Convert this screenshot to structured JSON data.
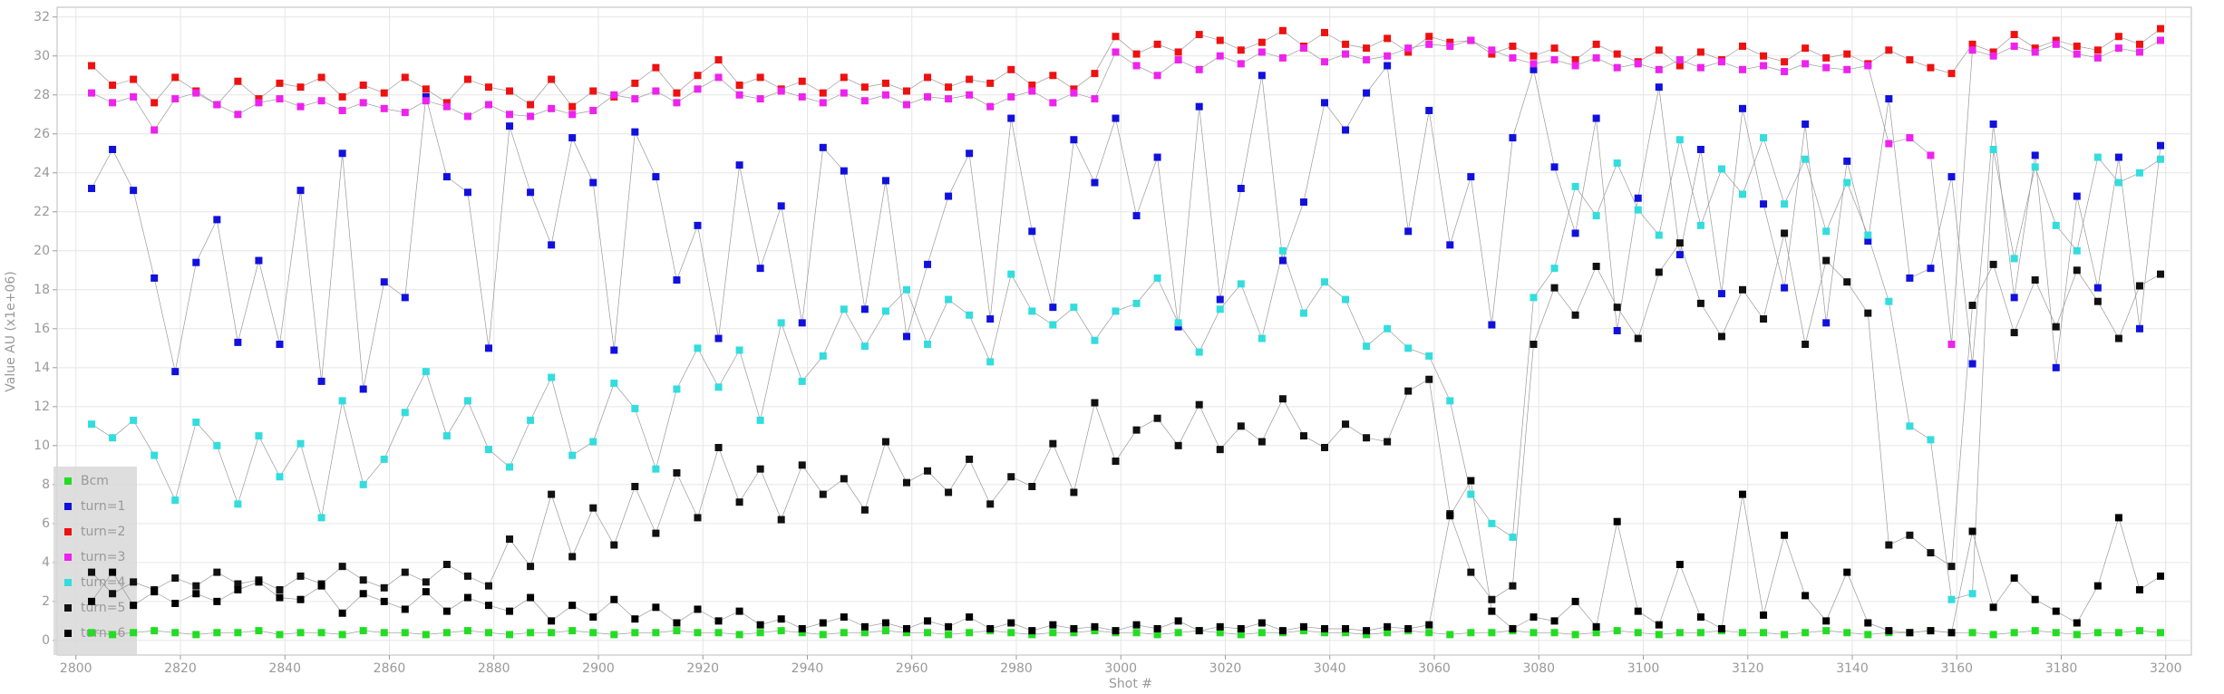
{
  "chart_data": {
    "type": "scatter",
    "xlabel": "Shot #",
    "ylabel": "Value AU (x1e+06)",
    "xlim": [
      2796.4,
      3204.9
    ],
    "ylim": [
      -0.75,
      32.5
    ],
    "xticks": [
      2800,
      2820,
      2840,
      2860,
      2880,
      2900,
      2920,
      2940,
      2960,
      2980,
      3000,
      3020,
      3040,
      3060,
      3080,
      3100,
      3120,
      3140,
      3160,
      3180,
      3200
    ],
    "yticks": [
      0,
      2,
      4,
      6,
      8,
      10,
      12,
      14,
      16,
      18,
      20,
      22,
      24,
      26,
      28,
      30,
      32
    ],
    "grid": true,
    "legend": "lower left",
    "line_color": "#999999",
    "x": [
      2803,
      2807,
      2811,
      2815,
      2819,
      2823,
      2827,
      2831,
      2835,
      2839,
      2843,
      2847,
      2851,
      2855,
      2859,
      2863,
      2867,
      2871,
      2875,
      2879,
      2883,
      2887,
      2891,
      2895,
      2899,
      2903,
      2907,
      2911,
      2915,
      2919,
      2923,
      2927,
      2931,
      2935,
      2939,
      2943,
      2947,
      2951,
      2955,
      2959,
      2963,
      2967,
      2971,
      2975,
      2979,
      2983,
      2987,
      2991,
      2995,
      2999,
      3003,
      3007,
      3011,
      3015,
      3019,
      3023,
      3027,
      3031,
      3035,
      3039,
      3043,
      3047,
      3051,
      3055,
      3059,
      3063,
      3067,
      3071,
      3075,
      3079,
      3083,
      3087,
      3091,
      3095,
      3099,
      3103,
      3107,
      3111,
      3115,
      3119,
      3123,
      3127,
      3131,
      3135,
      3139,
      3143,
      3147,
      3151,
      3155,
      3159,
      3163,
      3167,
      3171,
      3175,
      3179,
      3183,
      3187,
      3191,
      3195,
      3199
    ],
    "series": [
      {
        "name": "Bcm",
        "color": "#22dd22",
        "values": [
          0.4,
          0.3,
          0.4,
          0.5,
          0.4,
          0.3,
          0.4,
          0.4,
          0.5,
          0.3,
          0.4,
          0.4,
          0.3,
          0.5,
          0.4,
          0.4,
          0.3,
          0.4,
          0.5,
          0.4,
          0.3,
          0.4,
          0.4,
          0.5,
          0.4,
          0.3,
          0.4,
          0.4,
          0.5,
          0.4,
          0.4,
          0.3,
          0.4,
          0.5,
          0.4,
          0.3,
          0.4,
          0.4,
          0.5,
          0.4,
          0.4,
          0.3,
          0.4,
          0.5,
          0.4,
          0.3,
          0.4,
          0.4,
          0.5,
          0.4,
          0.4,
          0.3,
          0.4,
          0.5,
          0.4,
          0.3,
          0.4,
          0.4,
          0.5,
          0.4,
          0.4,
          0.3,
          0.4,
          0.5,
          0.4,
          0.3,
          0.4,
          0.4,
          0.5,
          0.4,
          0.4,
          0.3,
          0.4,
          0.5,
          0.4,
          0.3,
          0.4,
          0.4,
          0.5,
          0.4,
          0.4,
          0.3,
          0.4,
          0.5,
          0.4,
          0.3,
          0.4,
          0.4,
          0.5,
          0.4,
          0.4,
          0.3,
          0.4,
          0.5,
          0.4,
          0.3,
          0.4,
          0.4,
          0.5,
          0.4
        ]
      },
      {
        "name": "turn=1",
        "color": "#1111dd",
        "values": [
          23.2,
          25.2,
          23.1,
          18.6,
          13.8,
          19.4,
          21.6,
          15.3,
          19.5,
          15.2,
          23.1,
          13.3,
          25.0,
          12.9,
          18.4,
          17.6,
          27.9,
          23.8,
          23.0,
          15.0,
          26.4,
          23.0,
          20.3,
          25.8,
          23.5,
          14.9,
          26.1,
          23.8,
          18.5,
          21.3,
          15.5,
          24.4,
          19.1,
          22.3,
          16.3,
          25.3,
          24.1,
          17.0,
          23.6,
          15.6,
          19.3,
          22.8,
          25.0,
          16.5,
          26.8,
          21.0,
          17.1,
          25.7,
          23.5,
          26.8,
          21.8,
          24.8,
          16.1,
          27.4,
          17.5,
          23.2,
          29.0,
          19.5,
          22.5,
          27.6,
          26.2,
          28.1,
          29.5,
          21.0,
          27.2,
          20.3,
          23.8,
          16.2,
          25.8,
          29.3,
          24.3,
          20.9,
          26.8,
          15.9,
          22.7,
          28.4,
          19.8,
          25.2,
          17.8,
          27.3,
          22.4,
          18.1,
          26.5,
          16.3,
          24.6,
          20.5,
          27.8,
          18.6,
          19.1,
          23.8,
          14.2,
          26.5,
          17.6,
          24.9,
          14.0,
          22.8,
          18.1,
          24.8,
          16.0,
          25.4
        ]
      },
      {
        "name": "turn=2",
        "color": "#ee1111",
        "values": [
          29.5,
          28.5,
          28.8,
          27.6,
          28.9,
          28.2,
          27.5,
          28.7,
          27.8,
          28.6,
          28.4,
          28.9,
          27.9,
          28.5,
          28.1,
          28.9,
          28.3,
          27.6,
          28.8,
          28.4,
          28.2,
          27.5,
          28.8,
          27.4,
          28.2,
          27.9,
          28.6,
          29.4,
          28.1,
          29.0,
          29.8,
          28.5,
          28.9,
          28.3,
          28.7,
          28.1,
          28.9,
          28.4,
          28.6,
          28.2,
          28.9,
          28.4,
          28.8,
          28.6,
          29.3,
          28.5,
          29.0,
          28.3,
          29.1,
          31.0,
          30.1,
          30.6,
          30.2,
          31.1,
          30.8,
          30.3,
          30.7,
          31.3,
          30.5,
          31.2,
          30.6,
          30.4,
          30.9,
          30.2,
          31.0,
          30.7,
          30.8,
          30.1,
          30.5,
          30.0,
          30.4,
          29.8,
          30.6,
          30.1,
          29.7,
          30.3,
          29.5,
          30.2,
          29.8,
          30.5,
          30.0,
          29.7,
          30.4,
          29.9,
          30.1,
          29.6,
          30.3,
          29.8,
          29.4,
          29.1,
          30.6,
          30.2,
          31.1,
          30.4,
          30.8,
          30.5,
          30.3,
          31.0,
          30.6,
          31.4
        ]
      },
      {
        "name": "turn=3",
        "color": "#ee22ee",
        "values": [
          28.1,
          27.6,
          27.9,
          26.2,
          27.8,
          28.1,
          27.5,
          27.0,
          27.6,
          27.8,
          27.4,
          27.7,
          27.2,
          27.6,
          27.3,
          27.1,
          27.7,
          27.4,
          26.9,
          27.5,
          27.0,
          26.9,
          27.3,
          27.0,
          27.2,
          28.0,
          27.8,
          28.2,
          27.6,
          28.3,
          28.9,
          28.0,
          27.8,
          28.2,
          27.9,
          27.6,
          28.1,
          27.7,
          28.0,
          27.5,
          27.9,
          27.8,
          28.0,
          27.4,
          27.9,
          28.2,
          27.6,
          28.1,
          27.8,
          30.2,
          29.5,
          29.0,
          29.8,
          29.3,
          30.0,
          29.6,
          30.2,
          29.9,
          30.4,
          29.7,
          30.1,
          29.8,
          30.0,
          30.4,
          30.6,
          30.5,
          30.8,
          30.3,
          29.9,
          29.6,
          29.8,
          29.5,
          29.9,
          29.4,
          29.6,
          29.3,
          29.8,
          29.4,
          29.7,
          29.3,
          29.5,
          29.2,
          29.6,
          29.4,
          29.3,
          29.5,
          25.5,
          25.8,
          24.9,
          15.2,
          30.3,
          30.0,
          30.5,
          30.2,
          30.6,
          30.1,
          29.9,
          30.4,
          30.2,
          30.8
        ]
      },
      {
        "name": "turn=4",
        "color": "#33dddd",
        "values": [
          11.1,
          10.4,
          11.3,
          9.5,
          7.2,
          11.2,
          10.0,
          7.0,
          10.5,
          8.4,
          10.1,
          6.3,
          12.3,
          8.0,
          9.3,
          11.7,
          13.8,
          10.5,
          12.3,
          9.8,
          8.9,
          11.3,
          13.5,
          9.5,
          10.2,
          13.2,
          11.9,
          8.8,
          12.9,
          15.0,
          13.0,
          14.9,
          11.3,
          16.3,
          13.3,
          14.6,
          17.0,
          15.1,
          16.9,
          18.0,
          15.2,
          17.5,
          16.7,
          14.3,
          18.8,
          16.9,
          16.2,
          17.1,
          15.4,
          16.9,
          17.3,
          18.6,
          16.3,
          14.8,
          17.0,
          18.3,
          15.5,
          20.0,
          16.8,
          18.4,
          17.5,
          15.1,
          16.0,
          15.0,
          14.6,
          12.3,
          7.5,
          6.0,
          5.3,
          17.6,
          19.1,
          23.3,
          21.8,
          24.5,
          22.1,
          20.8,
          25.7,
          21.3,
          24.2,
          22.9,
          25.8,
          22.4,
          24.7,
          21.0,
          23.5,
          20.8,
          17.4,
          11.0,
          10.3,
          2.1,
          2.4,
          25.2,
          19.6,
          24.3,
          21.3,
          20.0,
          24.8,
          23.5,
          24.0,
          24.7
        ]
      },
      {
        "name": "turn=5",
        "color": "#111111",
        "values": [
          3.5,
          2.4,
          3.0,
          2.6,
          3.2,
          2.8,
          3.5,
          2.9,
          3.1,
          2.6,
          3.3,
          2.9,
          3.8,
          3.1,
          2.7,
          3.5,
          3.0,
          3.9,
          3.3,
          2.8,
          5.2,
          3.8,
          7.5,
          4.3,
          6.8,
          4.9,
          7.9,
          5.5,
          8.6,
          6.3,
          9.9,
          7.1,
          8.8,
          6.2,
          9.0,
          7.5,
          8.3,
          6.7,
          10.2,
          8.1,
          8.7,
          7.6,
          9.3,
          7.0,
          8.4,
          7.9,
          10.1,
          7.6,
          12.2,
          9.2,
          10.8,
          11.4,
          10.0,
          12.1,
          9.8,
          11.0,
          10.2,
          12.4,
          10.5,
          9.9,
          11.1,
          10.4,
          10.2,
          12.8,
          13.4,
          6.5,
          3.5,
          2.1,
          2.8,
          15.2,
          18.1,
          16.7,
          19.2,
          17.1,
          15.5,
          18.9,
          20.4,
          17.3,
          15.6,
          18.0,
          16.5,
          20.9,
          15.2,
          19.5,
          18.4,
          16.8,
          4.9,
          5.4,
          4.5,
          3.8,
          17.2,
          19.3,
          15.8,
          18.5,
          16.1,
          19.0,
          17.4,
          15.5,
          18.2,
          18.8
        ]
      },
      {
        "name": "turn=6",
        "color": "#000000",
        "values": [
          2.0,
          3.5,
          1.8,
          2.5,
          1.9,
          2.4,
          2.0,
          2.6,
          3.0,
          2.2,
          2.1,
          2.8,
          1.4,
          2.4,
          2.0,
          1.6,
          2.5,
          1.5,
          2.2,
          1.8,
          1.5,
          2.2,
          1.0,
          1.8,
          1.2,
          2.1,
          1.1,
          1.7,
          0.9,
          1.6,
          1.0,
          1.5,
          0.8,
          1.1,
          0.6,
          0.9,
          1.2,
          0.7,
          0.9,
          0.6,
          1.0,
          0.7,
          1.2,
          0.6,
          0.9,
          0.5,
          0.8,
          0.6,
          0.7,
          0.5,
          0.8,
          0.6,
          1.0,
          0.5,
          0.7,
          0.6,
          0.9,
          0.5,
          0.7,
          0.6,
          0.6,
          0.5,
          0.7,
          0.6,
          0.8,
          6.4,
          8.2,
          1.5,
          0.6,
          1.2,
          1.0,
          2.0,
          0.7,
          6.1,
          1.5,
          0.8,
          3.9,
          1.2,
          0.6,
          7.5,
          1.3,
          5.4,
          2.3,
          1.0,
          3.5,
          0.9,
          0.5,
          0.4,
          0.5,
          0.4,
          5.6,
          1.7,
          3.2,
          2.1,
          1.5,
          0.9,
          2.8,
          6.3,
          2.6,
          3.3
        ]
      }
    ]
  }
}
